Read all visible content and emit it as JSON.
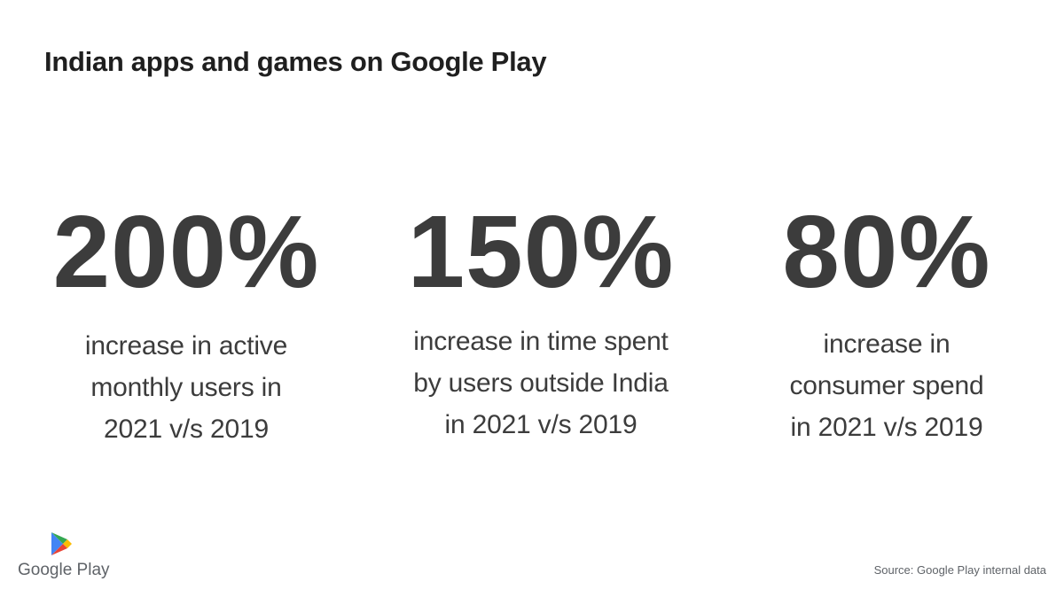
{
  "title": "Indian apps and games on Google Play",
  "stats": [
    {
      "value": "200%",
      "lines": [
        "increase in active",
        "monthly users in",
        "2021 v/s 2019"
      ]
    },
    {
      "value": "150%",
      "lines": [
        "increase in time spent",
        "by users outside India",
        "in 2021 v/s 2019"
      ]
    },
    {
      "value": "80%",
      "lines": [
        "increase in",
        "consumer spend",
        "in 2021 v/s 2019"
      ]
    }
  ],
  "logo": {
    "icon": "google-play-icon",
    "label": "Google Play"
  },
  "source": "Source: Google Play internal data",
  "colors": {
    "background": "#ffffff",
    "title": "#1f1f1f",
    "stat_text": "#3c3c3c",
    "muted": "#5f6368",
    "play_blue": "#4285F4",
    "play_green": "#34A853",
    "play_yellow": "#FBBC04",
    "play_red": "#EA4335"
  }
}
